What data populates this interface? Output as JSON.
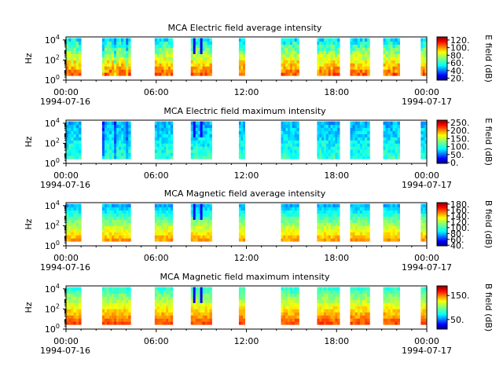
{
  "figure": {
    "panels": [
      {
        "title": "MCA  Electric field average intensity",
        "ylabel": "Hz",
        "cbar_label": "E field (dB)",
        "cbar_ticks": [
          "20.",
          "40.",
          "60.",
          "80.",
          "100.",
          "120."
        ],
        "cbar_tick_values": [
          20,
          40,
          60,
          80,
          100,
          120
        ],
        "cbar_range": [
          15,
          128
        ]
      },
      {
        "title": "MCA  Electric field maximum intensity",
        "ylabel": "Hz",
        "cbar_label": "E field (dB)",
        "cbar_ticks": [
          "0.",
          "50.",
          "100.",
          "150.",
          "200.",
          "250."
        ],
        "cbar_tick_values": [
          0,
          50,
          100,
          150,
          200,
          250
        ],
        "cbar_range": [
          -5,
          265
        ]
      },
      {
        "title": "MCA  Magnetic field average intensity",
        "ylabel": "Hz",
        "cbar_label": "B field (dB)",
        "cbar_ticks": [
          "40.",
          "60.",
          "80.",
          "100.",
          "120.",
          "140.",
          "160.",
          "180."
        ],
        "cbar_tick_values": [
          40,
          60,
          80,
          100,
          120,
          140,
          160,
          180
        ],
        "cbar_range": [
          38,
          185
        ]
      },
      {
        "title": "MCA  Magnetic field maximum intensity",
        "ylabel": "Hz",
        "cbar_label": "B field (dB)",
        "cbar_ticks": [
          "50.",
          "150."
        ],
        "cbar_tick_values": [
          50,
          150
        ],
        "cbar_range": [
          10,
          190
        ]
      }
    ],
    "xtick_labels": [
      "00:00",
      "06:00",
      "12:00",
      "18:00",
      "00:00"
    ],
    "xdate_labels": [
      "1994-07-16",
      "1994-07-17"
    ]
  },
  "chart_data": [
    {
      "type": "heatmap",
      "title": "MCA  Electric field average intensity",
      "xlabel": "",
      "ylabel": "Hz",
      "x_unit": "hours since 1994-07-16 00:00",
      "xlim": [
        0,
        24
      ],
      "ylim": [
        1,
        20000
      ],
      "yscale": "log",
      "colorbar": "E field (dB)",
      "coverage_hours": [
        [
          0.0,
          1.0
        ],
        [
          2.4,
          4.3
        ],
        [
          5.9,
          7.1
        ],
        [
          8.3,
          9.7
        ],
        [
          11.5,
          11.9
        ],
        [
          14.3,
          15.5
        ],
        [
          16.7,
          18.2
        ],
        [
          18.9,
          20.2
        ],
        [
          21.1,
          22.2
        ],
        [
          23.6,
          24.0
        ]
      ]
    },
    {
      "type": "heatmap",
      "title": "MCA  Electric field maximum intensity",
      "xlabel": "",
      "ylabel": "Hz",
      "x_unit": "hours since 1994-07-16 00:00",
      "xlim": [
        0,
        24
      ],
      "ylim": [
        1,
        20000
      ],
      "yscale": "log",
      "colorbar": "E field (dB)",
      "coverage_hours": [
        [
          0.0,
          1.0
        ],
        [
          2.4,
          4.3
        ],
        [
          5.9,
          7.1
        ],
        [
          8.3,
          9.7
        ],
        [
          11.5,
          11.9
        ],
        [
          14.3,
          15.5
        ],
        [
          16.7,
          18.2
        ],
        [
          18.9,
          20.2
        ],
        [
          21.1,
          22.2
        ],
        [
          23.6,
          24.0
        ]
      ]
    },
    {
      "type": "heatmap",
      "title": "MCA  Magnetic field average intensity",
      "xlabel": "",
      "ylabel": "Hz",
      "x_unit": "hours since 1994-07-16 00:00",
      "xlim": [
        0,
        24
      ],
      "ylim": [
        1,
        20000
      ],
      "yscale": "log",
      "colorbar": "B field (dB)",
      "coverage_hours": [
        [
          0.0,
          1.0
        ],
        [
          2.4,
          4.3
        ],
        [
          5.9,
          7.1
        ],
        [
          8.3,
          9.7
        ],
        [
          11.5,
          11.9
        ],
        [
          14.3,
          15.5
        ],
        [
          16.7,
          18.2
        ],
        [
          18.9,
          20.2
        ],
        [
          21.1,
          22.2
        ],
        [
          23.6,
          24.0
        ]
      ]
    },
    {
      "type": "heatmap",
      "title": "MCA  Magnetic field maximum intensity",
      "xlabel": "",
      "ylabel": "Hz",
      "x_unit": "hours since 1994-07-16 00:00",
      "xlim": [
        0,
        24
      ],
      "ylim": [
        1,
        20000
      ],
      "yscale": "log",
      "colorbar": "B field (dB)",
      "coverage_hours": [
        [
          0.0,
          1.0
        ],
        [
          2.4,
          4.3
        ],
        [
          5.9,
          7.1
        ],
        [
          8.3,
          9.7
        ],
        [
          11.5,
          11.9
        ],
        [
          14.3,
          15.5
        ],
        [
          16.7,
          18.2
        ],
        [
          18.9,
          20.2
        ],
        [
          21.1,
          22.2
        ],
        [
          23.6,
          24.0
        ]
      ]
    }
  ]
}
